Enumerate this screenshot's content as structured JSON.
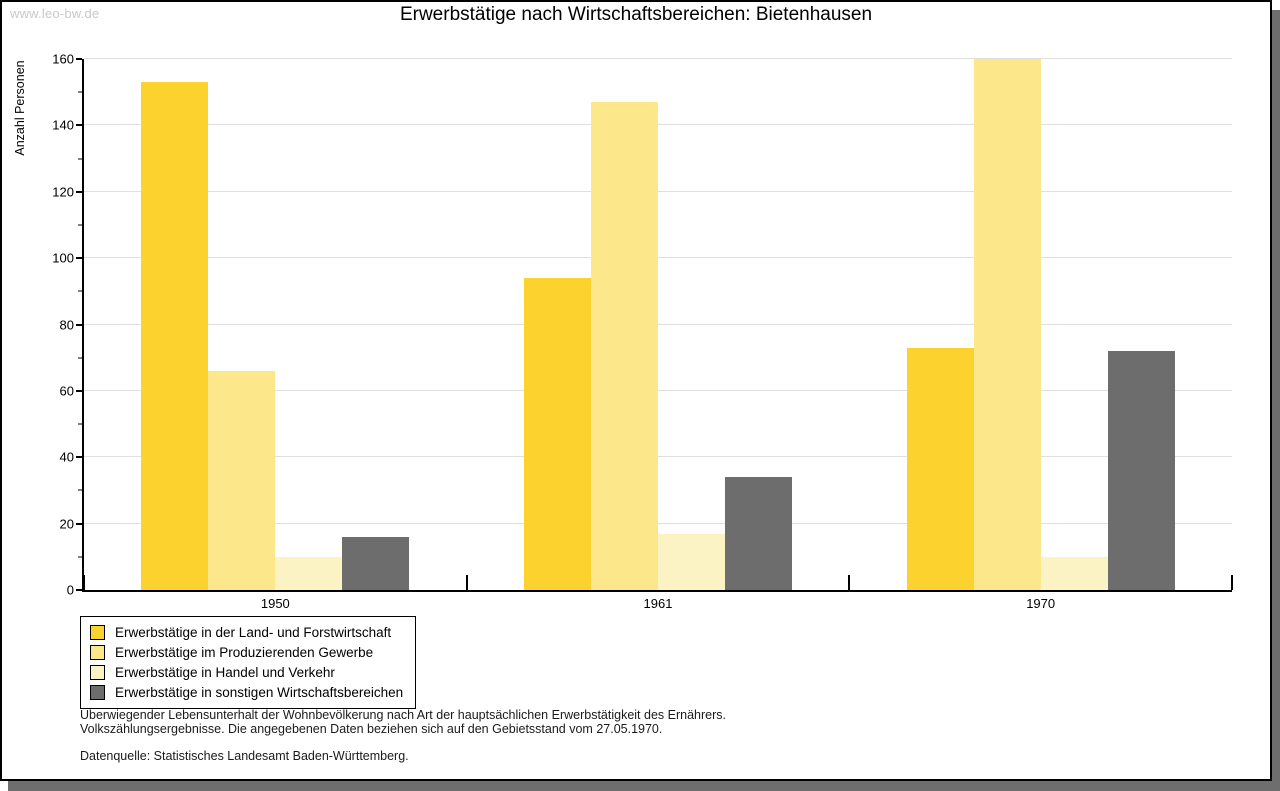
{
  "watermark": "www.leo-bw.de",
  "chart_data": {
    "type": "bar",
    "title": "Erwerbstätige nach Wirtschaftsbereichen: Bietenhausen",
    "xlabel": "",
    "ylabel": "Anzahl Personen",
    "categories": [
      "1950",
      "1961",
      "1970"
    ],
    "series": [
      {
        "name": "Erwerbstätige in der Land- und Forstwirtschaft",
        "color": "#fcd22e",
        "values": [
          153,
          94,
          73
        ]
      },
      {
        "name": "Erwerbstätige im Produzierenden Gewerbe",
        "color": "#fce78a",
        "values": [
          66,
          147,
          160
        ]
      },
      {
        "name": "Erwerbstätige in Handel und Verkehr",
        "color": "#fcf3c5",
        "values": [
          10,
          17,
          10
        ]
      },
      {
        "name": "Erwerbstätige in sonstigen Wirtschaftsbereichen",
        "color": "#6d6d6d",
        "values": [
          16,
          34,
          72
        ]
      }
    ],
    "ylim": [
      0,
      160
    ],
    "ytick_step": 20,
    "minor_tick_step": 10,
    "grid": true,
    "legend_position": "bottom-left"
  },
  "footer": {
    "line1": "Überwiegender Lebensunterhalt der Wohnbevölkerung nach Art der hauptsächlichen Erwerbstätigkeit des Ernährers.",
    "line2": "Volkszählungsergebnisse. Die angegebenen Daten beziehen sich auf den Gebietsstand vom 27.05.1970.",
    "source": "Datenquelle: Statistisches Landesamt Baden-Württemberg."
  }
}
